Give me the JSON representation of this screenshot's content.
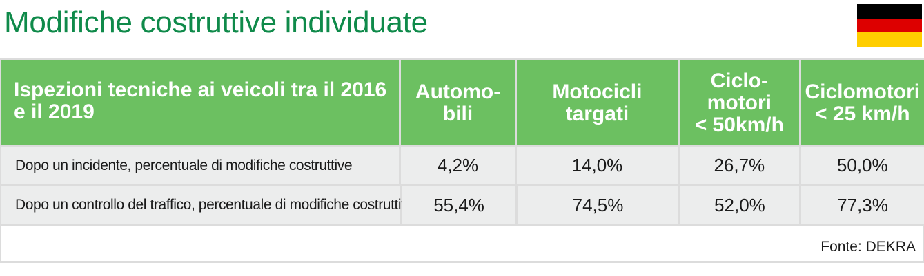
{
  "title": "Modifiche costruttive individuate",
  "flag": {
    "name": "germany-flag-icon",
    "colors": [
      "#000000",
      "#dd0000",
      "#ffce00"
    ]
  },
  "table": {
    "headers": [
      "Ispezioni tecniche ai veicoli tra il 2016 e il 2019",
      "Automo-\nbili",
      "Motocicli\ntargati",
      "Ciclo-\nmotori\n< 50km/h",
      "Ciclomotori\n< 25 km/h"
    ],
    "rows": [
      {
        "label": "Dopo un incidente, percentuale di modifiche costruttive",
        "values": [
          "4,2%",
          "14,0%",
          "26,7%",
          "50,0%"
        ]
      },
      {
        "label": "Dopo un controllo del traffico, percentuale di modifiche costruttive",
        "values": [
          "55,4%",
          "74,5%",
          "52,0%",
          "77,3%"
        ]
      }
    ]
  },
  "source": "Fonte: DEKRA",
  "colors": {
    "title": "#0f8a4a",
    "header_bg": "#6cc061",
    "row_bg": "#eceded"
  }
}
